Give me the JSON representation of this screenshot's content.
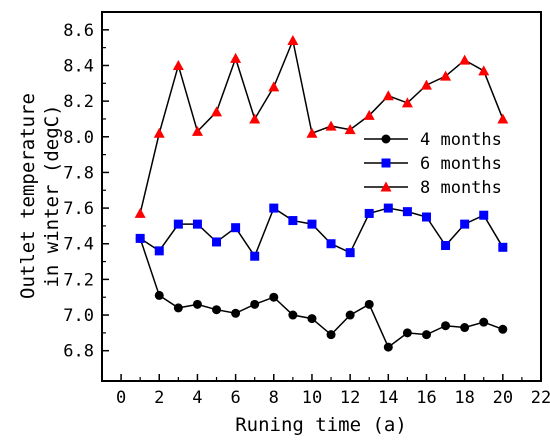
{
  "chart_data": {
    "type": "line",
    "xlabel": "Runing time (a)",
    "ylabel_line1": "Outlet temperature",
    "ylabel_line2": "in winter (degC)",
    "xlim": [
      -1,
      22
    ],
    "ylim": [
      6.63,
      8.7
    ],
    "xticks": [
      "0",
      "2",
      "4",
      "6",
      "8",
      "10",
      "12",
      "14",
      "16",
      "18",
      "20",
      "22"
    ],
    "yticks": [
      "6.8",
      "7.0",
      "7.2",
      "7.4",
      "7.6",
      "7.8",
      "8.0",
      "8.2",
      "8.4",
      "8.6"
    ],
    "legend_position": "right-middle",
    "x": [
      1,
      2,
      3,
      4,
      5,
      6,
      7,
      8,
      9,
      10,
      11,
      12,
      13,
      14,
      15,
      16,
      17,
      18,
      19,
      20
    ],
    "series": [
      {
        "name": "4 months",
        "marker": "circle",
        "color": "#000000",
        "values": [
          7.43,
          7.11,
          7.04,
          7.06,
          7.03,
          7.01,
          7.06,
          7.1,
          7.0,
          6.98,
          6.89,
          7.0,
          7.06,
          6.82,
          6.9,
          6.89,
          6.94,
          6.93,
          6.96,
          6.92
        ]
      },
      {
        "name": "6 months",
        "marker": "square",
        "color": "#0000ff",
        "values": [
          7.43,
          7.36,
          7.51,
          7.51,
          7.41,
          7.49,
          7.33,
          7.6,
          7.53,
          7.51,
          7.4,
          7.35,
          7.57,
          7.6,
          7.58,
          7.55,
          7.39,
          7.51,
          7.56,
          7.38
        ]
      },
      {
        "name": "8 months",
        "marker": "triangle",
        "color": "#ff0000",
        "values": [
          7.57,
          8.02,
          8.4,
          8.03,
          8.14,
          8.44,
          8.1,
          8.28,
          8.54,
          8.02,
          8.06,
          8.04,
          8.12,
          8.23,
          8.19,
          8.29,
          8.34,
          8.43,
          8.37,
          8.1
        ]
      }
    ]
  }
}
